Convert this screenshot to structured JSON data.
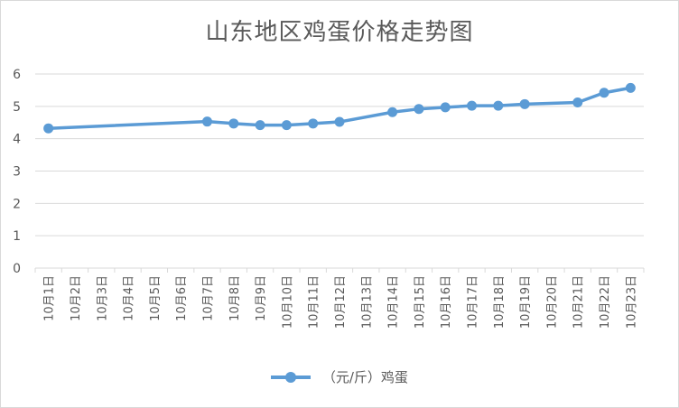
{
  "chart_data": {
    "type": "line",
    "title": "山东地区鸡蛋价格走势图",
    "xlabel": "",
    "ylabel": "",
    "ylim": [
      0,
      6
    ],
    "yticks": [
      0,
      1,
      2,
      3,
      4,
      5,
      6
    ],
    "grid": true,
    "legend_position": "bottom",
    "line_color": "#5b9bd5",
    "grid_color": "#d9d9d9",
    "categories": [
      "10月1日",
      "10月2日",
      "10月3日",
      "10月4日",
      "10月5日",
      "10月6日",
      "10月7日",
      "10月8日",
      "10月9日",
      "10月10日",
      "10月11日",
      "10月12日",
      "10月13日",
      "10月14日",
      "10月15日",
      "10月16日",
      "10月17日",
      "10月18日",
      "10月19日",
      "10月20日",
      "10月21日",
      "10月22日",
      "10月23日"
    ],
    "series": [
      {
        "name": "（元/斤）鸡蛋",
        "values": [
          4.32,
          null,
          null,
          null,
          null,
          null,
          4.53,
          4.47,
          4.42,
          4.42,
          4.47,
          4.52,
          null,
          4.82,
          4.92,
          4.97,
          5.02,
          5.02,
          5.07,
          null,
          5.12,
          5.42,
          5.57
        ]
      }
    ]
  }
}
